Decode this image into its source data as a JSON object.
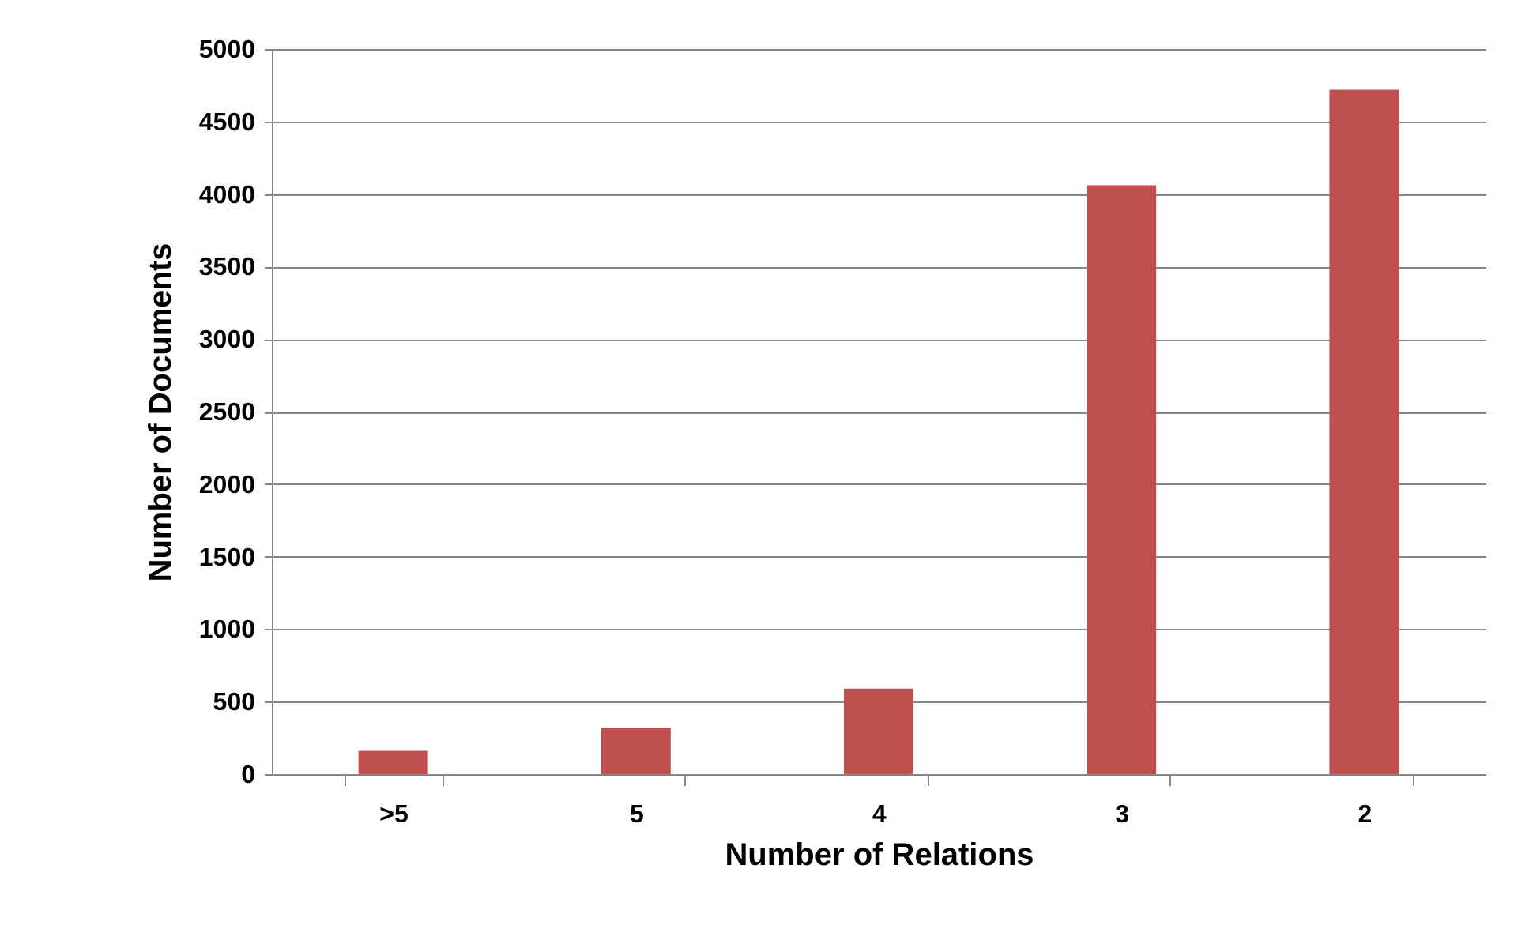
{
  "chart_data": {
    "type": "bar",
    "xlabel": "Number of Relations",
    "ylabel": "Number of Documents",
    "categories": [
      ">5",
      "5",
      "4",
      "3",
      "2"
    ],
    "values": [
      160,
      320,
      590,
      4060,
      4720
    ],
    "color": "#c0504d",
    "ylim": [
      0,
      5000
    ],
    "yticks": [
      0,
      500,
      1000,
      1500,
      2000,
      2500,
      3000,
      3500,
      4000,
      4500,
      5000
    ],
    "grid": "y"
  }
}
